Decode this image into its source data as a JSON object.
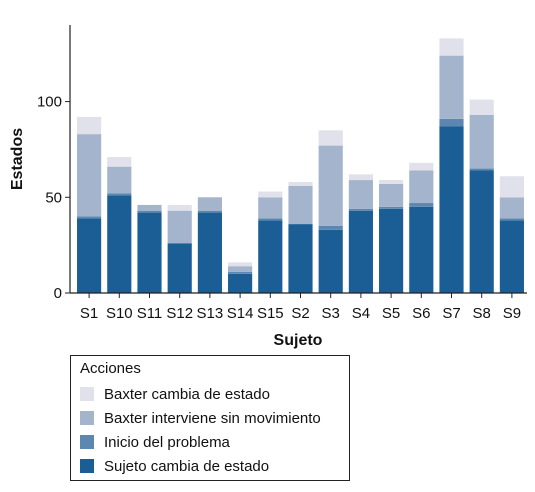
{
  "chart_data": {
    "type": "bar",
    "stacked": true,
    "categories": [
      "S1",
      "S10",
      "S11",
      "S12",
      "S13",
      "S14",
      "S15",
      "S2",
      "S3",
      "S4",
      "S5",
      "S6",
      "S7",
      "S8",
      "S9"
    ],
    "series": [
      {
        "name": "Sujeto cambia de estado",
        "color": "#1b5e96",
        "values": [
          39,
          51,
          42,
          26,
          42,
          10,
          38,
          36,
          33,
          43,
          44,
          45,
          87,
          64,
          38
        ]
      },
      {
        "name": "Inicio del problema",
        "color": "#5b87b0",
        "values": [
          1,
          1,
          1,
          0,
          1,
          1,
          1,
          0,
          2,
          1,
          1,
          2,
          4,
          1,
          1
        ]
      },
      {
        "name": "Baxter interviene sin movimiento",
        "color": "#a3b4cc",
        "values": [
          43,
          14,
          3,
          17,
          7,
          3,
          11,
          20,
          42,
          15,
          12,
          17,
          33,
          28,
          11
        ]
      },
      {
        "name": "Baxter cambia de estado",
        "color": "#e0e1ea",
        "values": [
          9,
          5,
          0,
          3,
          0,
          2,
          3,
          2,
          8,
          3,
          2,
          4,
          9,
          8,
          11
        ]
      }
    ],
    "xlabel": "Sujeto",
    "ylabel": "Estados",
    "ylim": [
      0,
      140
    ],
    "yticks": [
      0,
      50,
      100
    ],
    "grid": false,
    "legend_position": "bottom-left"
  },
  "legend": {
    "title": "Acciones",
    "items": [
      {
        "label": "Baxter cambia de estado",
        "color": "#e0e1ea"
      },
      {
        "label": "Baxter interviene sin movimiento",
        "color": "#a3b4cc"
      },
      {
        "label": "Inicio del problema",
        "color": "#5b87b0"
      },
      {
        "label": "Sujeto cambia de estado",
        "color": "#1b5e96"
      }
    ]
  }
}
